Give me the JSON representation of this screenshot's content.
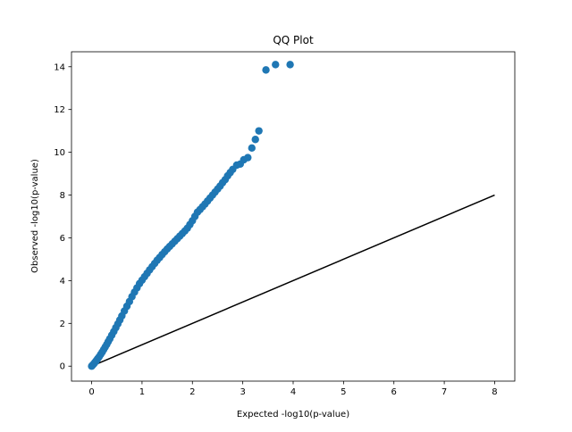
{
  "chart_data": {
    "type": "scatter",
    "title": "QQ Plot",
    "xlabel": "Expected -log10(p-value)",
    "ylabel": "Observed -log10(p-value)",
    "xlim": [
      -0.4,
      8.4
    ],
    "ylim": [
      -0.7,
      14.7
    ],
    "xticks": [
      0,
      1,
      2,
      3,
      4,
      5,
      6,
      7,
      8
    ],
    "yticks": [
      0,
      2,
      4,
      6,
      8,
      10,
      12,
      14
    ],
    "grid": false,
    "legend": "none",
    "series": [
      {
        "marker_color": "#1f77b4",
        "points": [
          [
            0.0,
            0.0
          ],
          [
            0.02,
            0.05
          ],
          [
            0.04,
            0.1
          ],
          [
            0.06,
            0.16
          ],
          [
            0.08,
            0.22
          ],
          [
            0.1,
            0.28
          ],
          [
            0.12,
            0.35
          ],
          [
            0.15,
            0.44
          ],
          [
            0.18,
            0.55
          ],
          [
            0.21,
            0.66
          ],
          [
            0.24,
            0.78
          ],
          [
            0.27,
            0.9
          ],
          [
            0.3,
            1.02
          ],
          [
            0.33,
            1.15
          ],
          [
            0.36,
            1.28
          ],
          [
            0.4,
            1.45
          ],
          [
            0.44,
            1.62
          ],
          [
            0.48,
            1.8
          ],
          [
            0.52,
            1.98
          ],
          [
            0.56,
            2.16
          ],
          [
            0.6,
            2.35
          ],
          [
            0.65,
            2.58
          ],
          [
            0.7,
            2.8
          ],
          [
            0.75,
            3.02
          ],
          [
            0.8,
            3.25
          ],
          [
            0.85,
            3.46
          ],
          [
            0.9,
            3.66
          ],
          [
            0.95,
            3.86
          ],
          [
            1.0,
            4.02
          ],
          [
            1.05,
            4.18
          ],
          [
            1.1,
            4.34
          ],
          [
            1.15,
            4.5
          ],
          [
            1.2,
            4.65
          ],
          [
            1.25,
            4.8
          ],
          [
            1.3,
            4.95
          ],
          [
            1.35,
            5.08
          ],
          [
            1.4,
            5.22
          ],
          [
            1.45,
            5.35
          ],
          [
            1.5,
            5.48
          ],
          [
            1.55,
            5.6
          ],
          [
            1.6,
            5.72
          ],
          [
            1.65,
            5.84
          ],
          [
            1.7,
            5.96
          ],
          [
            1.75,
            6.08
          ],
          [
            1.8,
            6.2
          ],
          [
            1.85,
            6.32
          ],
          [
            1.9,
            6.45
          ],
          [
            1.95,
            6.62
          ],
          [
            2.0,
            6.8
          ],
          [
            2.05,
            7.0
          ],
          [
            2.1,
            7.2
          ],
          [
            2.15,
            7.32
          ],
          [
            2.2,
            7.45
          ],
          [
            2.25,
            7.58
          ],
          [
            2.3,
            7.72
          ],
          [
            2.35,
            7.86
          ],
          [
            2.4,
            8.0
          ],
          [
            2.45,
            8.14
          ],
          [
            2.5,
            8.28
          ],
          [
            2.55,
            8.42
          ],
          [
            2.6,
            8.58
          ],
          [
            2.65,
            8.72
          ],
          [
            2.7,
            8.9
          ],
          [
            2.75,
            9.05
          ],
          [
            2.8,
            9.2
          ],
          [
            2.88,
            9.4
          ],
          [
            2.95,
            9.45
          ],
          [
            3.02,
            9.65
          ],
          [
            3.1,
            9.75
          ],
          [
            3.18,
            10.2
          ],
          [
            3.25,
            10.6
          ],
          [
            3.32,
            11.0
          ],
          [
            3.46,
            13.85
          ],
          [
            3.65,
            14.1
          ],
          [
            3.94,
            14.1
          ]
        ]
      }
    ],
    "reference_line": {
      "x": [
        0,
        8
      ],
      "y": [
        0,
        8
      ],
      "color": "#000000"
    }
  }
}
